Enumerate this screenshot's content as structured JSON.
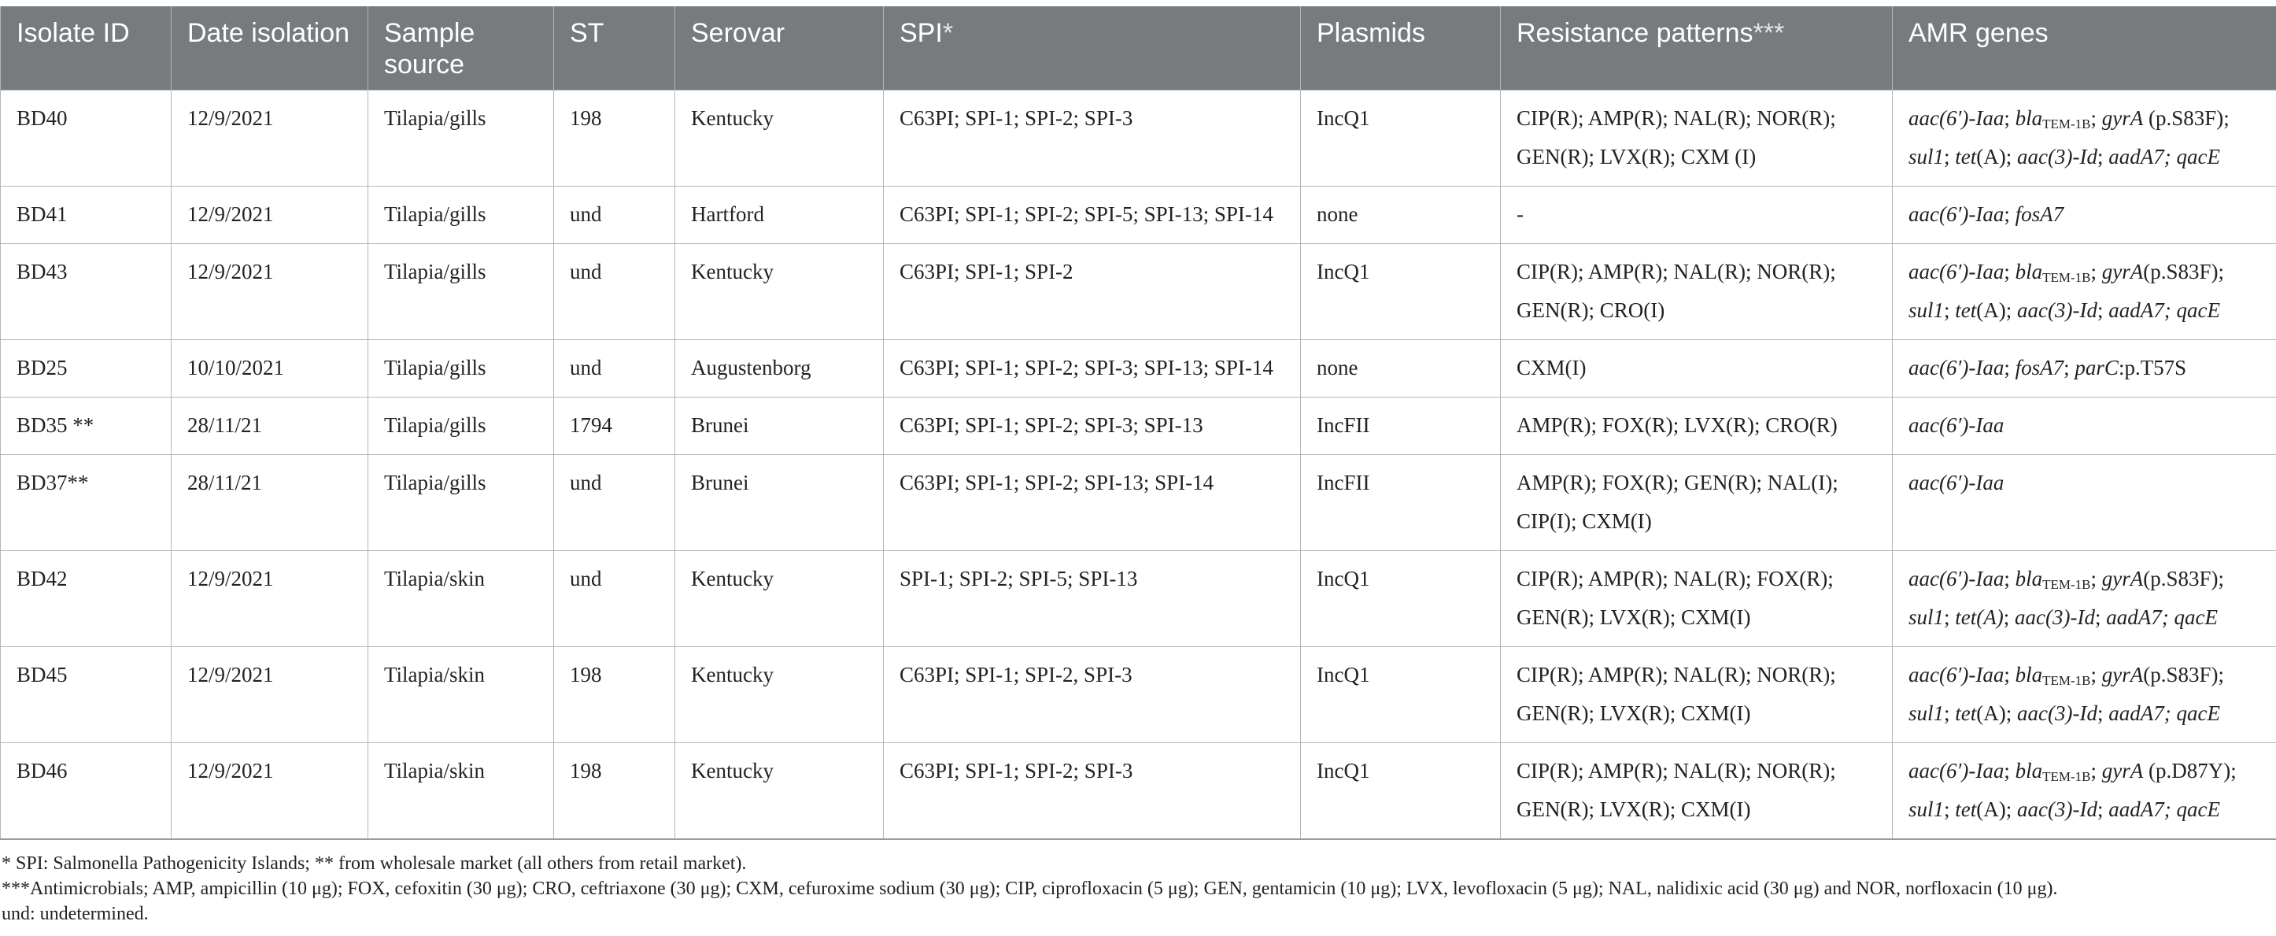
{
  "table": {
    "headers": [
      {
        "label": "Isolate ID",
        "suffix": ""
      },
      {
        "label": "Date isolation",
        "suffix": ""
      },
      {
        "label": "Sample source",
        "suffix": ""
      },
      {
        "label": "ST",
        "suffix": ""
      },
      {
        "label": "Serovar",
        "suffix": ""
      },
      {
        "label": "SPI",
        "suffix": "*"
      },
      {
        "label": "Plasmids",
        "suffix": ""
      },
      {
        "label": "Resistance patterns",
        "suffix": "***"
      },
      {
        "label": "AMR genes",
        "suffix": ""
      }
    ],
    "rows": [
      {
        "isolate": "BD40",
        "date": "12/9/2021",
        "source": "Tilapia/gills",
        "st": "198",
        "serovar": "Kentucky",
        "spi": "C63PI; SPI-1; SPI-2; SPI-3",
        "plasmids": "IncQ1",
        "resistance": [
          "CIP(R); AMP(R); NAL(R); NOR(R);",
          "GEN(R); LVX(R); CXM (I)"
        ],
        "genes_line1": [
          {
            "t": "aac(6′)-Iaa",
            "s": "i"
          },
          {
            "t": "; ",
            "s": "n"
          },
          {
            "t": "bla",
            "s": "i"
          },
          {
            "t": "TEM-1B",
            "s": "sub"
          },
          {
            "t": "; ",
            "s": "n"
          },
          {
            "t": "gyrA",
            "s": "i"
          },
          {
            "t": " (p.S83F);",
            "s": "n"
          }
        ],
        "genes_line2": [
          {
            "t": "sul1",
            "s": "i"
          },
          {
            "t": "; ",
            "s": "n"
          },
          {
            "t": "tet",
            "s": "i"
          },
          {
            "t": "(A); ",
            "s": "n"
          },
          {
            "t": "aac(3)-Id",
            "s": "i"
          },
          {
            "t": "; ",
            "s": "n"
          },
          {
            "t": "aadA7; qacE",
            "s": "i"
          }
        ]
      },
      {
        "isolate": "BD41",
        "date": "12/9/2021",
        "source": "Tilapia/gills",
        "st": "und",
        "serovar": "Hartford",
        "spi": "C63PI; SPI-1; SPI-2; SPI-5; SPI-13; SPI-14",
        "plasmids": "none",
        "resistance": [
          "-"
        ],
        "genes_line1": [
          {
            "t": "aac(6′)-Iaa",
            "s": "i"
          },
          {
            "t": "; ",
            "s": "n"
          },
          {
            "t": "fosA7",
            "s": "i"
          }
        ],
        "genes_line2": []
      },
      {
        "isolate": "BD43",
        "date": "12/9/2021",
        "source": "Tilapia/gills",
        "st": "und",
        "serovar": "Kentucky",
        "spi": "C63PI; SPI-1; SPI-2",
        "plasmids": "IncQ1",
        "resistance": [
          "CIP(R); AMP(R); NAL(R); NOR(R);",
          "GEN(R); CRO(I)"
        ],
        "genes_line1": [
          {
            "t": "aac(6′)-Iaa",
            "s": "i"
          },
          {
            "t": "; ",
            "s": "n"
          },
          {
            "t": "bla",
            "s": "i"
          },
          {
            "t": "TEM-1B",
            "s": "sub"
          },
          {
            "t": "; ",
            "s": "n"
          },
          {
            "t": "gyrA",
            "s": "i"
          },
          {
            "t": "(p.S83F);",
            "s": "n"
          }
        ],
        "genes_line2": [
          {
            "t": "sul1",
            "s": "i"
          },
          {
            "t": "; ",
            "s": "n"
          },
          {
            "t": "tet",
            "s": "i"
          },
          {
            "t": "(A); ",
            "s": "n"
          },
          {
            "t": "aac(3)-Id",
            "s": "i"
          },
          {
            "t": "; ",
            "s": "n"
          },
          {
            "t": "aadA7; qacE",
            "s": "i"
          }
        ]
      },
      {
        "isolate": "BD25",
        "date": "10/10/2021",
        "source": "Tilapia/gills",
        "st": "und",
        "serovar": "Augustenborg",
        "spi": "C63PI; SPI-1; SPI-2; SPI-3; SPI-13; SPI-14",
        "plasmids": "none",
        "resistance": [
          "CXM(I)"
        ],
        "genes_line1": [
          {
            "t": "aac(6′)-Iaa",
            "s": "i"
          },
          {
            "t": "; ",
            "s": "n"
          },
          {
            "t": "fosA7",
            "s": "i"
          },
          {
            "t": "; ",
            "s": "n"
          },
          {
            "t": "parC",
            "s": "i"
          },
          {
            "t": ":p.T57S",
            "s": "n"
          }
        ],
        "genes_line2": []
      },
      {
        "isolate": "BD35 **",
        "date": "28/11/21",
        "source": "Tilapia/gills",
        "st": "1794",
        "serovar": "Brunei",
        "spi": "C63PI; SPI-1; SPI-2; SPI-3; SPI-13",
        "plasmids": "IncFII",
        "resistance": [
          "AMP(R); FOX(R); LVX(R); CRO(R)"
        ],
        "genes_line1": [
          {
            "t": "aac(6′)-Iaa",
            "s": "i"
          }
        ],
        "genes_line2": []
      },
      {
        "isolate": "BD37**",
        "date": "28/11/21",
        "source": "Tilapia/gills",
        "st": "und",
        "serovar": "Brunei",
        "spi": "C63PI; SPI-1; SPI-2; SPI-13; SPI-14",
        "plasmids": "IncFII",
        "resistance": [
          "AMP(R); FOX(R); GEN(R); NAL(I);",
          "CIP(I); CXM(I)"
        ],
        "genes_line1": [
          {
            "t": "aac(6′)-Iaa",
            "s": "i"
          }
        ],
        "genes_line2": []
      },
      {
        "isolate": "BD42",
        "date": "12/9/2021",
        "source": "Tilapia/skin",
        "st": "und",
        "serovar": "Kentucky",
        "spi": "SPI-1; SPI-2; SPI-5; SPI-13",
        "plasmids": "IncQ1",
        "resistance": [
          "CIP(R); AMP(R); NAL(R); FOX(R);",
          "GEN(R); LVX(R); CXM(I)"
        ],
        "genes_line1": [
          {
            "t": "aac(6′)-Iaa",
            "s": "i"
          },
          {
            "t": "; ",
            "s": "n"
          },
          {
            "t": "bla",
            "s": "i"
          },
          {
            "t": "TEM-1B",
            "s": "sub"
          },
          {
            "t": "; ",
            "s": "n"
          },
          {
            "t": "gyrA",
            "s": "i"
          },
          {
            "t": "(p.S83F);",
            "s": "n"
          }
        ],
        "genes_line2": [
          {
            "t": "sul1",
            "s": "i"
          },
          {
            "t": "; ",
            "s": "n"
          },
          {
            "t": "tet(A)",
            "s": "i"
          },
          {
            "t": "; ",
            "s": "n"
          },
          {
            "t": "aac(3)-Id",
            "s": "i"
          },
          {
            "t": "; ",
            "s": "n"
          },
          {
            "t": "aadA7; qacE",
            "s": "i"
          }
        ]
      },
      {
        "isolate": "BD45",
        "date": "12/9/2021",
        "source": "Tilapia/skin",
        "st": "198",
        "serovar": "Kentucky",
        "spi": "C63PI; SPI-1; SPI-2, SPI-3",
        "plasmids": "IncQ1",
        "resistance": [
          "CIP(R); AMP(R); NAL(R); NOR(R);",
          "GEN(R); LVX(R); CXM(I)"
        ],
        "genes_line1": [
          {
            "t": "aac(6′)-Iaa",
            "s": "i"
          },
          {
            "t": "; ",
            "s": "n"
          },
          {
            "t": "bla",
            "s": "i"
          },
          {
            "t": "TEM-1B",
            "s": "sub"
          },
          {
            "t": "; ",
            "s": "n"
          },
          {
            "t": "gyrA",
            "s": "i"
          },
          {
            "t": "(p.S83F);",
            "s": "n"
          }
        ],
        "genes_line2": [
          {
            "t": "sul1",
            "s": "i"
          },
          {
            "t": "; ",
            "s": "n"
          },
          {
            "t": "tet",
            "s": "i"
          },
          {
            "t": "(A); ",
            "s": "n"
          },
          {
            "t": "aac(3)-Id",
            "s": "i"
          },
          {
            "t": "; ",
            "s": "n"
          },
          {
            "t": "aadA7; qacE",
            "s": "i"
          }
        ]
      },
      {
        "isolate": "BD46",
        "date": "12/9/2021",
        "source": "Tilapia/skin",
        "st": "198",
        "serovar": "Kentucky",
        "spi": "C63PI; SPI-1; SPI-2; SPI-3",
        "plasmids": "IncQ1",
        "resistance": [
          "CIP(R); AMP(R); NAL(R); NOR(R);",
          "GEN(R); LVX(R); CXM(I)"
        ],
        "genes_line1": [
          {
            "t": "aac(6′)-Iaa",
            "s": "i"
          },
          {
            "t": "; ",
            "s": "n"
          },
          {
            "t": "bla",
            "s": "i"
          },
          {
            "t": "TEM-1B",
            "s": "sub"
          },
          {
            "t": "; ",
            "s": "n"
          },
          {
            "t": "gyrA",
            "s": "i"
          },
          {
            "t": " (p.D87Y);",
            "s": "n"
          }
        ],
        "genes_line2": [
          {
            "t": "sul1",
            "s": "i"
          },
          {
            "t": "; ",
            "s": "n"
          },
          {
            "t": "tet",
            "s": "i"
          },
          {
            "t": "(A); ",
            "s": "n"
          },
          {
            "t": "aac(3)-Id",
            "s": "i"
          },
          {
            "t": "; ",
            "s": "n"
          },
          {
            "t": "aadA7; qacE",
            "s": "i"
          }
        ]
      }
    ]
  },
  "footnotes": {
    "line1": "* SPI: Salmonella Pathogenicity Islands; ** from wholesale market (all others from retail market).",
    "line2": "***Antimicrobials; AMP, ampicillin (10 μg); FOX, cefoxitin (30 μg); CRO, ceftriaxone (30 μg); CXM, cefuroxime sodium (30 μg); CIP, ciprofloxacin (5 μg); GEN, gentamicin (10 μg); LVX, levofloxacin (5 μg); NAL, nalidixic acid (30 μg) and NOR, norfloxacin (10 μg).",
    "line3": "und: undetermined."
  }
}
